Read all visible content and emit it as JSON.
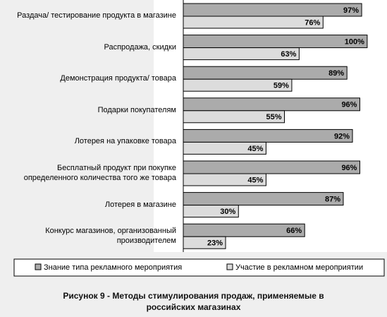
{
  "chart_data": {
    "type": "hbar",
    "title": "Рисунок 9 - Методы стимулирования продаж, применяемые в\nроссийских магазинах",
    "categories": [
      "Раздача/ тестирование продукта в магазине",
      "Распродажа, скидки",
      "Демонстрация продукта/ товара",
      "Подарки покупателям",
      "Лотерея на упаковке товара",
      "Бесплатный продукт при покупке\nопределенного количества того же товара",
      "Лотерея в магазине",
      "Конкурс магазинов, организованный\nпроизводителем"
    ],
    "xlim": [
      0,
      110
    ],
    "series": [
      {
        "name": "Знание типа рекламного мероприятия",
        "color": "#ababab",
        "values": [
          97,
          100,
          89,
          96,
          92,
          96,
          87,
          66
        ],
        "value_labels": [
          "97%",
          "100%",
          "89%",
          "96%",
          "92%",
          "96%",
          "87%",
          "66%"
        ]
      },
      {
        "name": "Участие в рекламном мероприятии",
        "color": "#dcdcdc",
        "values": [
          76,
          63,
          59,
          55,
          45,
          45,
          30,
          23
        ],
        "value_labels": [
          "76%",
          "63%",
          "59%",
          "55%",
          "45%",
          "45%",
          "30%",
          "23%"
        ]
      }
    ]
  }
}
